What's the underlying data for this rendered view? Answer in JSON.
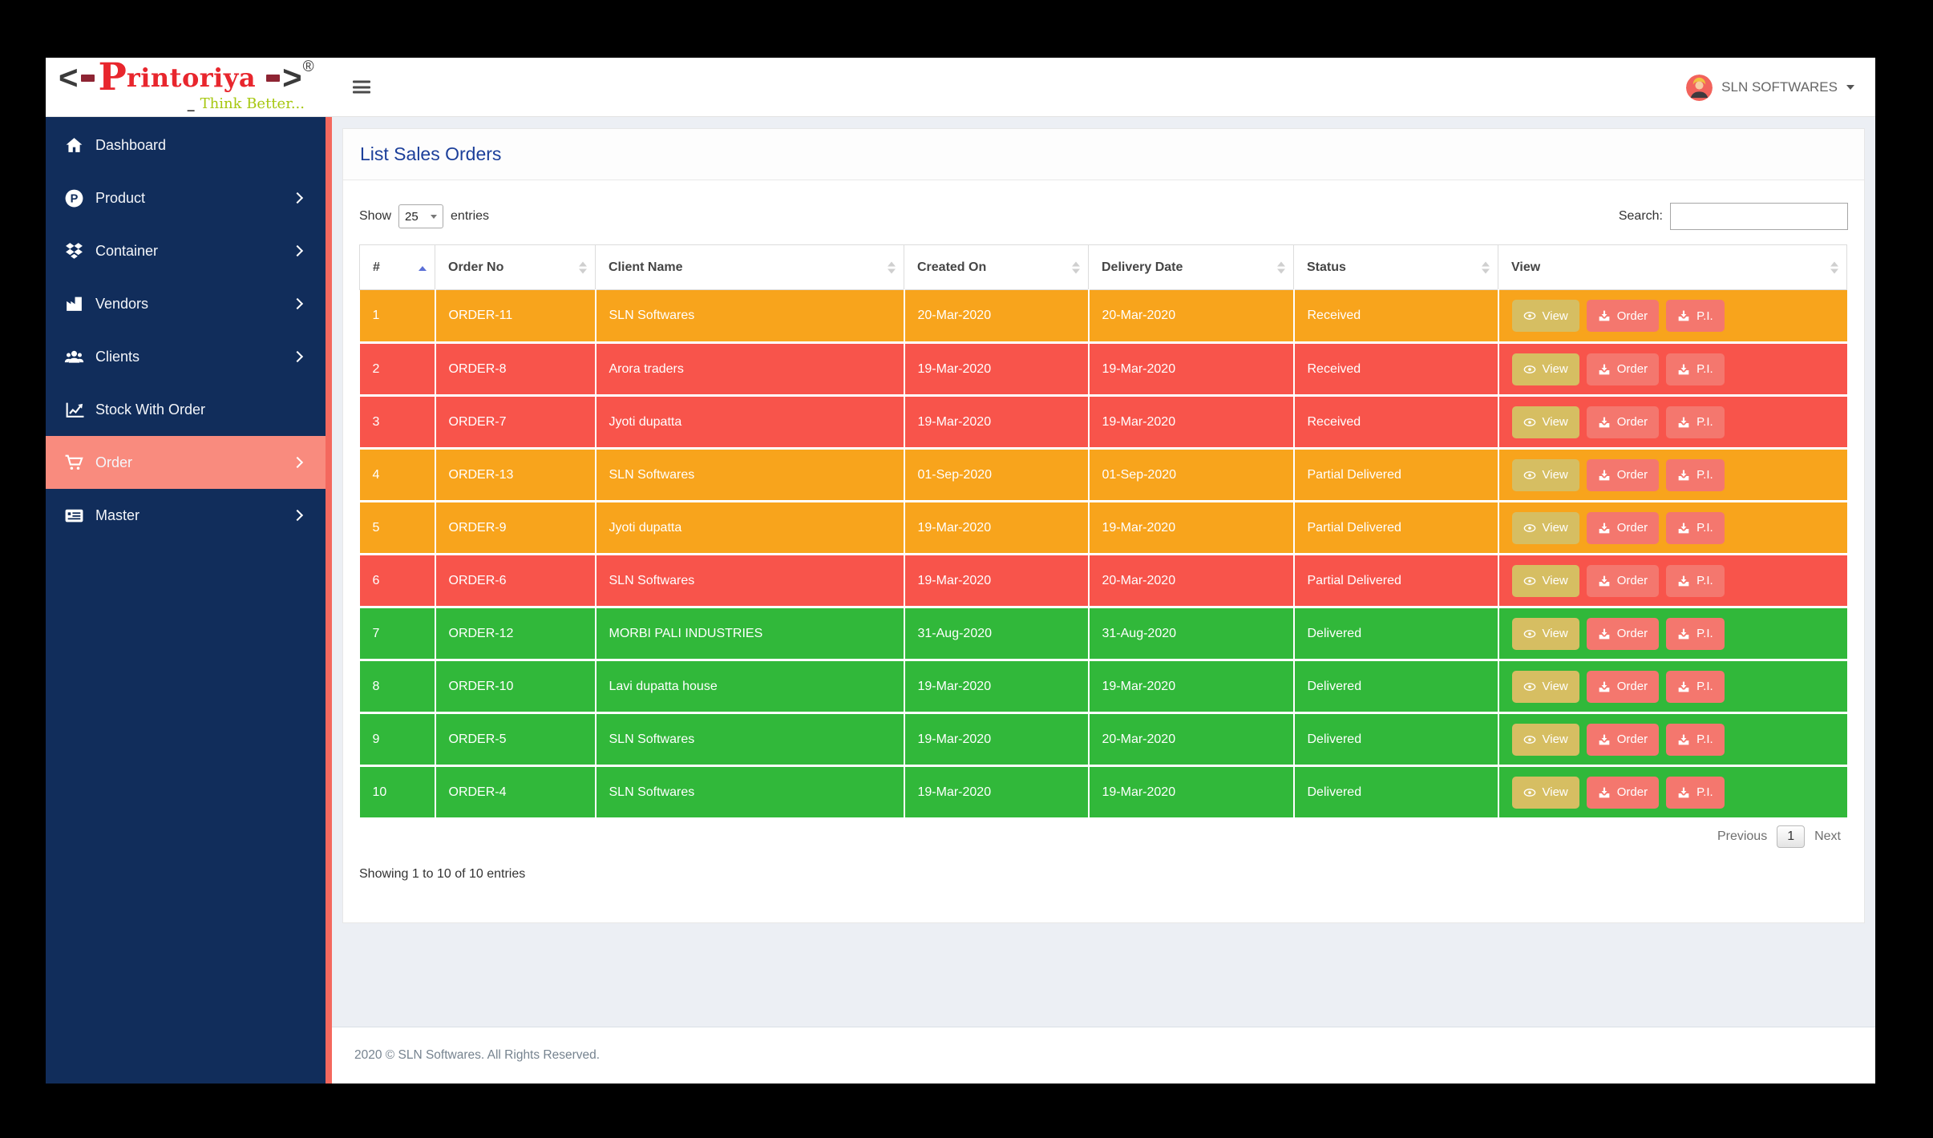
{
  "colors": {
    "sidebar_navy": "#112D5B",
    "active_item_salmon": "#F98B7E",
    "accent_strip": "#F4685E",
    "row_orange": "#F8A41C",
    "row_red": "#F8544B",
    "row_green": "#31B83A",
    "view_button": "#D6BE62",
    "action_button": "#F4776E",
    "title_blue": "#1C3F9A",
    "logo_red": "#E8262D"
  },
  "brand": {
    "angle_open": "<",
    "angle_close": ">",
    "name_initial": "P",
    "name_rest": "rintoriya",
    "registered": "®",
    "tagline_prefix": "_",
    "tagline": "Think Better..."
  },
  "navbar": {
    "user_name": "SLN SOFTWARES"
  },
  "sidebar": {
    "items": [
      {
        "label": "Dashboard",
        "icon": "home-icon",
        "chevron": false,
        "active": false
      },
      {
        "label": "Product",
        "icon": "product-icon",
        "chevron": true,
        "active": false
      },
      {
        "label": "Container",
        "icon": "container-icon",
        "chevron": true,
        "active": false
      },
      {
        "label": "Vendors",
        "icon": "vendors-icon",
        "chevron": true,
        "active": false
      },
      {
        "label": "Clients",
        "icon": "clients-icon",
        "chevron": true,
        "active": false
      },
      {
        "label": "Stock With Order",
        "icon": "stock-chart-icon",
        "chevron": false,
        "active": false
      },
      {
        "label": "Order",
        "icon": "cart-icon",
        "chevron": true,
        "active": true
      },
      {
        "label": "Master",
        "icon": "master-card-icon",
        "chevron": true,
        "active": false
      }
    ]
  },
  "page": {
    "title": "List Sales Orders"
  },
  "toolbar": {
    "show_label": "Show",
    "page_size": "25",
    "entries_label": "entries",
    "search_label": "Search:",
    "search_value": ""
  },
  "table": {
    "columns": [
      {
        "label": "#",
        "sort": "asc"
      },
      {
        "label": "Order No",
        "sort": "both"
      },
      {
        "label": "Client Name",
        "sort": "both"
      },
      {
        "label": "Created On",
        "sort": "both"
      },
      {
        "label": "Delivery Date",
        "sort": "both"
      },
      {
        "label": "Status",
        "sort": "both"
      },
      {
        "label": "View",
        "sort": "both"
      }
    ],
    "actions": {
      "view": "View",
      "order": "Order",
      "pi": "P.I."
    },
    "rows": [
      {
        "num": "1",
        "order_no": "ORDER-11",
        "client": "SLN Softwares",
        "created": "20-Mar-2020",
        "delivery": "20-Mar-2020",
        "status": "Received",
        "color": "orange"
      },
      {
        "num": "2",
        "order_no": "ORDER-8",
        "client": "Arora traders",
        "created": "19-Mar-2020",
        "delivery": "19-Mar-2020",
        "status": "Received",
        "color": "red"
      },
      {
        "num": "3",
        "order_no": "ORDER-7",
        "client": "Jyoti dupatta",
        "created": "19-Mar-2020",
        "delivery": "19-Mar-2020",
        "status": "Received",
        "color": "red"
      },
      {
        "num": "4",
        "order_no": "ORDER-13",
        "client": "SLN Softwares",
        "created": "01-Sep-2020",
        "delivery": "01-Sep-2020",
        "status": "Partial Delivered",
        "color": "orange"
      },
      {
        "num": "5",
        "order_no": "ORDER-9",
        "client": "Jyoti dupatta",
        "created": "19-Mar-2020",
        "delivery": "19-Mar-2020",
        "status": "Partial Delivered",
        "color": "orange"
      },
      {
        "num": "6",
        "order_no": "ORDER-6",
        "client": "SLN Softwares",
        "created": "19-Mar-2020",
        "delivery": "20-Mar-2020",
        "status": "Partial Delivered",
        "color": "red"
      },
      {
        "num": "7",
        "order_no": "ORDER-12",
        "client": "MORBI PALI INDUSTRIES",
        "created": "31-Aug-2020",
        "delivery": "31-Aug-2020",
        "status": "Delivered",
        "color": "green"
      },
      {
        "num": "8",
        "order_no": "ORDER-10",
        "client": "Lavi dupatta house",
        "created": "19-Mar-2020",
        "delivery": "19-Mar-2020",
        "status": "Delivered",
        "color": "green"
      },
      {
        "num": "9",
        "order_no": "ORDER-5",
        "client": "SLN Softwares",
        "created": "19-Mar-2020",
        "delivery": "20-Mar-2020",
        "status": "Delivered",
        "color": "green"
      },
      {
        "num": "10",
        "order_no": "ORDER-4",
        "client": "SLN Softwares",
        "created": "19-Mar-2020",
        "delivery": "19-Mar-2020",
        "status": "Delivered",
        "color": "green"
      }
    ]
  },
  "pagination": {
    "previous": "Previous",
    "current": "1",
    "next": "Next"
  },
  "summary": "Showing 1 to 10 of 10 entries",
  "footer": {
    "copyright": "2020 © SLN Softwares. All Rights Reserved."
  }
}
